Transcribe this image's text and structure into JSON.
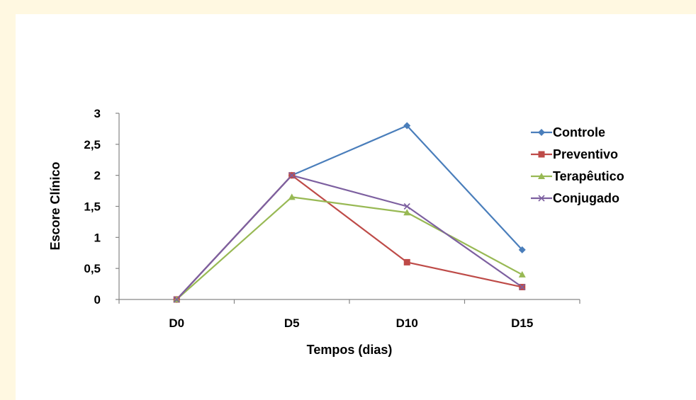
{
  "chart_data": {
    "type": "line",
    "title": "",
    "xlabel": "Tempos (dias)",
    "ylabel": "Escore Clínico",
    "categories": [
      "D0",
      "D5",
      "D10",
      "D15"
    ],
    "ylim": [
      0,
      3
    ],
    "yticks": [
      "0",
      "0,5",
      "1",
      "1,5",
      "2",
      "2,5",
      "3"
    ],
    "ytick_values": [
      0,
      0.5,
      1,
      1.5,
      2,
      2.5,
      3
    ],
    "grid": false,
    "legend_position": "right",
    "series": [
      {
        "name": "Controle",
        "values": [
          0,
          2,
          2.8,
          0.8
        ],
        "color": "#4a7ebb",
        "marker": "diamond"
      },
      {
        "name": "Preventivo",
        "values": [
          0,
          2,
          0.6,
          0.2
        ],
        "color": "#be4b48",
        "marker": "square"
      },
      {
        "name": "Terapêutico",
        "values": [
          0,
          1.65,
          1.4,
          0.4
        ],
        "color": "#98b954",
        "marker": "triangle"
      },
      {
        "name": "Conjugado",
        "values": [
          0,
          2,
          1.5,
          0.2
        ],
        "color": "#7d60a0",
        "marker": "x"
      }
    ]
  },
  "colors": {
    "page_background": "#fff8e1",
    "panel_background": "#ffffff",
    "axis": "#868686"
  }
}
